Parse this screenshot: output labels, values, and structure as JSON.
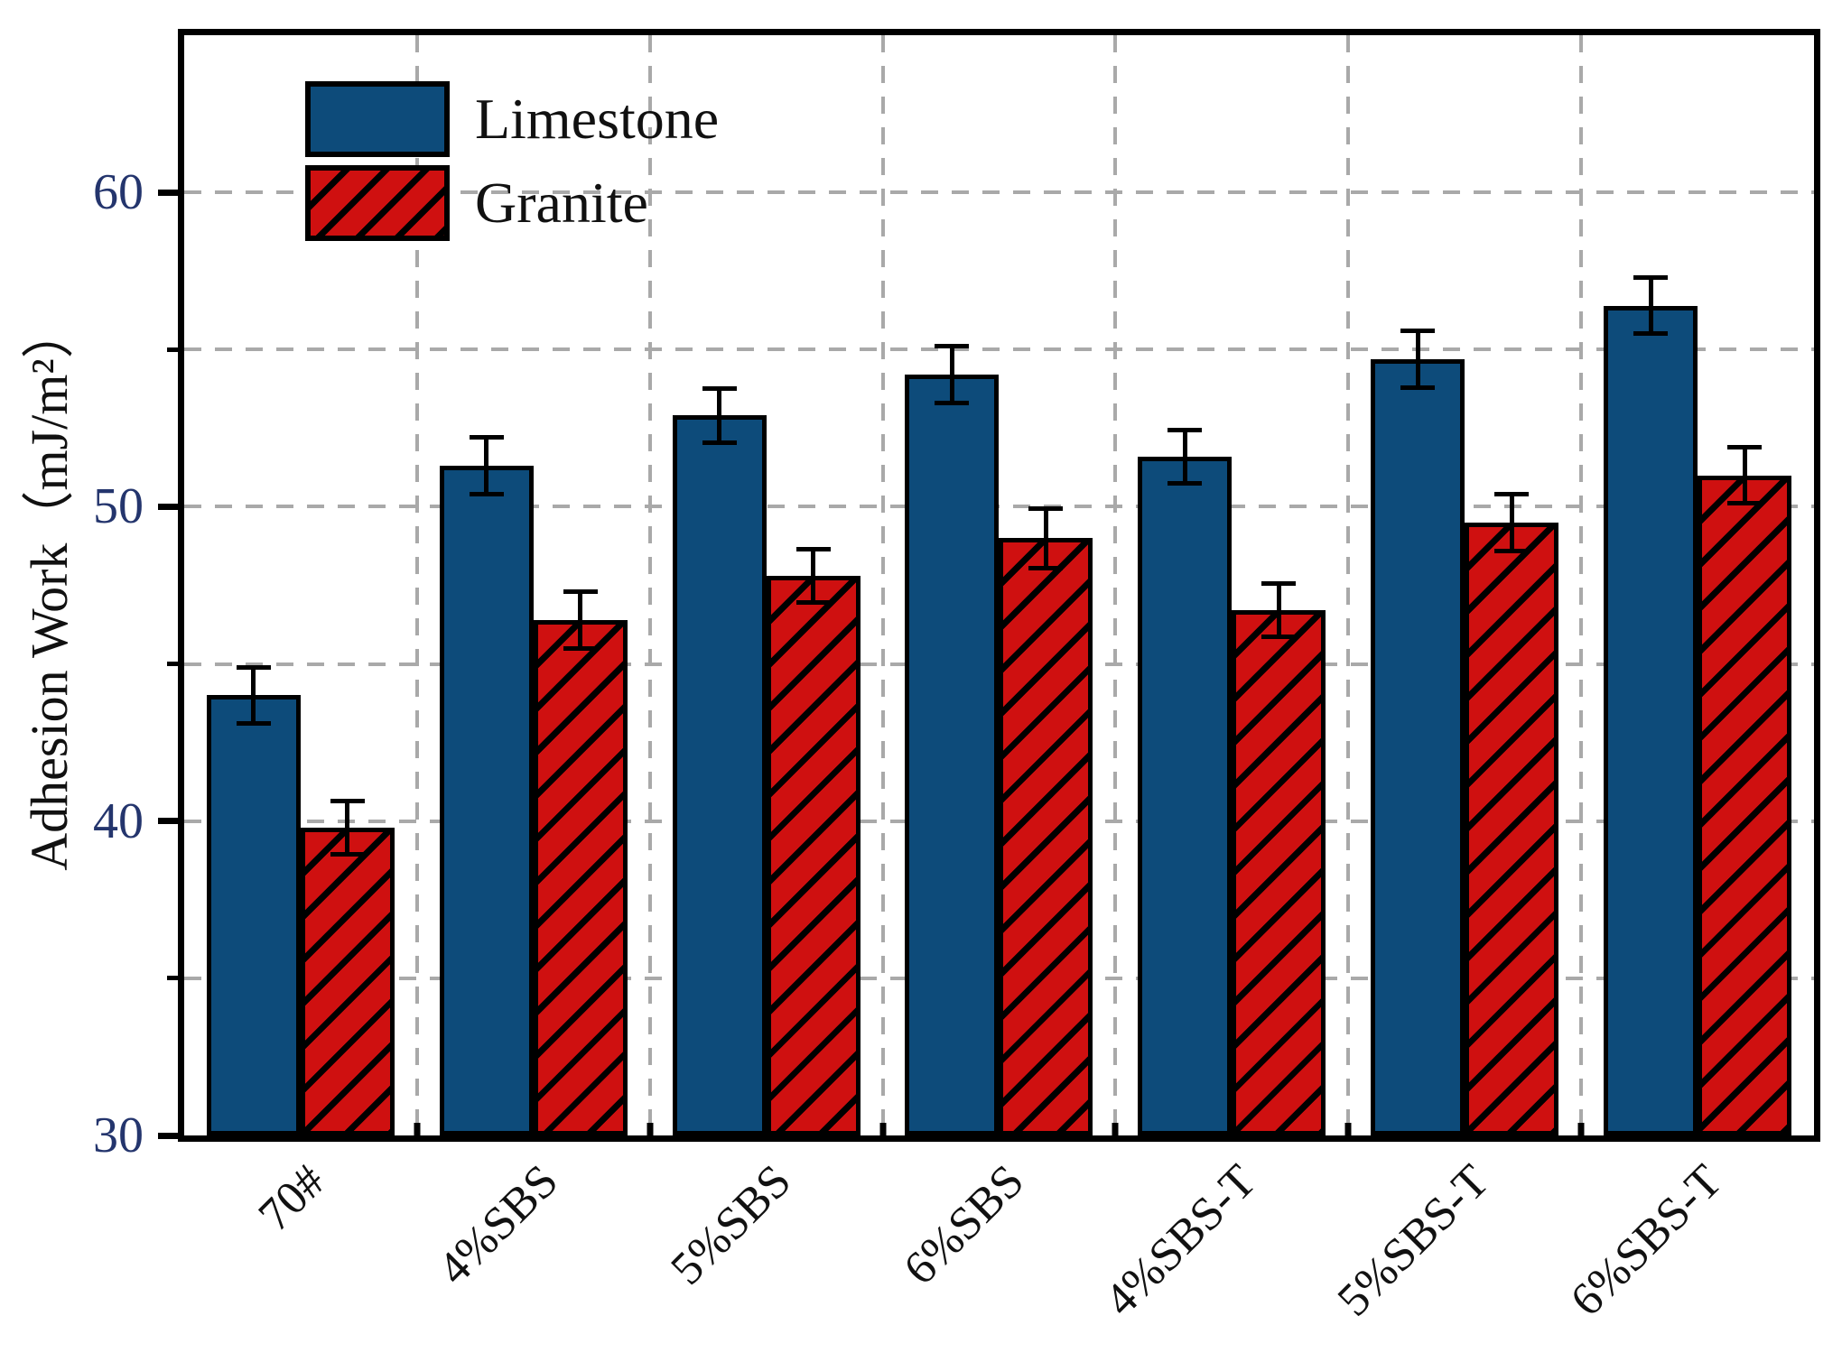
{
  "chart_data": {
    "type": "bar",
    "title": "",
    "categories": [
      "70#",
      "4%SBS",
      "5%SBS",
      "6%SBS",
      "4%SBS-T",
      "5%SBS-T",
      "6%SBS-T"
    ],
    "series": [
      {
        "name": "Limestone",
        "style": "solid",
        "color": "#0d4b7a",
        "values": [
          44.0,
          51.3,
          52.9,
          54.2,
          51.6,
          54.7,
          56.4
        ],
        "errors": [
          0.9,
          0.9,
          0.85,
          0.9,
          0.85,
          0.9,
          0.9
        ]
      },
      {
        "name": "Granite",
        "style": "hatched-diagonal",
        "color": "#cf1010",
        "values": [
          39.8,
          46.4,
          47.8,
          49.0,
          46.7,
          49.5,
          51.0
        ],
        "errors": [
          0.85,
          0.9,
          0.85,
          0.95,
          0.85,
          0.9,
          0.9
        ]
      }
    ],
    "xlabel": "",
    "ylabel": "Adhesion Work（mJ/m²）",
    "ylim": [
      30,
      65
    ],
    "yticks_major": [
      30,
      40,
      50,
      60
    ],
    "yticks_minor": [
      35,
      45,
      55
    ],
    "gridlines_y": [
      35,
      40,
      45,
      50,
      55,
      60
    ],
    "grid": true,
    "grid_style": "dashed",
    "legend_position": "upper-left",
    "error_bars": true
  },
  "colors": {
    "hatch": "#000000",
    "grid": "#a9a9a9",
    "axis": "#000000",
    "ytick_label": "#24356d",
    "text": "#111111",
    "background": "#ffffff"
  }
}
